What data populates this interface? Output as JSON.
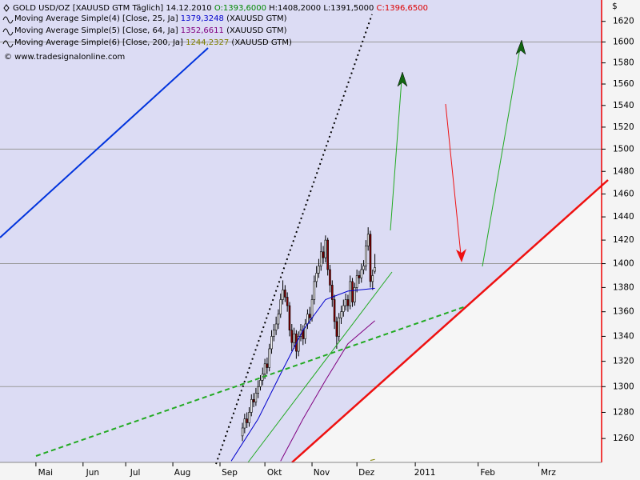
{
  "chart_data": {
    "type": "candlestick",
    "title": "GOLD USD/OZ [XAUUSD GTM  Täglich] 14.12.2010",
    "ohlc_labels": [
      "O:1393,6000",
      "H:1408,2000",
      "L:1391,5000",
      "C:1396,6500"
    ],
    "source": "© www.tradesignalonline.com",
    "y_unit": "$",
    "log_scale": true,
    "grid": true,
    "xlim": [
      0,
      268
    ],
    "ylim": [
      1242,
      1641
    ],
    "xticks": [
      {
        "value": 16,
        "label": "Mai"
      },
      {
        "value": 37,
        "label": "Jun"
      },
      {
        "value": 56,
        "label": "Jul"
      },
      {
        "value": 77,
        "label": "Aug"
      },
      {
        "value": 98,
        "label": "Sep"
      },
      {
        "value": 118,
        "label": "Okt"
      },
      {
        "value": 139,
        "label": "Nov"
      },
      {
        "value": 159,
        "label": "Dez"
      },
      {
        "value": 185,
        "label": "2011"
      },
      {
        "value": 213,
        "label": "Feb"
      },
      {
        "value": 240,
        "label": "Mrz"
      }
    ],
    "yticks": [
      1260,
      1280,
      1300,
      1320,
      1340,
      1360,
      1380,
      1400,
      1420,
      1440,
      1460,
      1480,
      1500,
      1520,
      1540,
      1560,
      1580,
      1600,
      1620
    ],
    "x": [
      108,
      109,
      110,
      111,
      112,
      113,
      114,
      115,
      116,
      117,
      118,
      119,
      120,
      121,
      122,
      123,
      124,
      125,
      126,
      127,
      128,
      129,
      130,
      131,
      132,
      133,
      134,
      135,
      136,
      137,
      138,
      139,
      140,
      141,
      142,
      143,
      144,
      145,
      146,
      147,
      148,
      149,
      150,
      151,
      152,
      153,
      154,
      155,
      156,
      157,
      158,
      159,
      160,
      161,
      162,
      163,
      164,
      165,
      166,
      167
    ],
    "open": [
      1262,
      1268,
      1275,
      1272,
      1280,
      1290,
      1288,
      1295,
      1300,
      1305,
      1310,
      1318,
      1315,
      1330,
      1340,
      1345,
      1350,
      1358,
      1370,
      1378,
      1372,
      1365,
      1345,
      1335,
      1342,
      1328,
      1340,
      1345,
      1338,
      1350,
      1358,
      1355,
      1370,
      1385,
      1392,
      1398,
      1410,
      1405,
      1420,
      1395,
      1382,
      1370,
      1352,
      1340,
      1355,
      1360,
      1365,
      1370,
      1365,
      1385,
      1368,
      1380,
      1390,
      1388,
      1395,
      1398,
      1415,
      1425,
      1385,
      1393.6
    ],
    "high": [
      1272,
      1279,
      1280,
      1284,
      1294,
      1295,
      1299,
      1305,
      1309,
      1315,
      1322,
      1323,
      1334,
      1345,
      1350,
      1356,
      1362,
      1375,
      1386,
      1382,
      1376,
      1368,
      1350,
      1347,
      1345,
      1344,
      1350,
      1349,
      1354,
      1362,
      1364,
      1374,
      1390,
      1398,
      1404,
      1418,
      1415,
      1424,
      1422,
      1399,
      1386,
      1374,
      1356,
      1359,
      1365,
      1370,
      1375,
      1374,
      1390,
      1388,
      1384,
      1395,
      1394,
      1400,
      1403,
      1420,
      1431,
      1428,
      1395,
      1408.2
    ],
    "low": [
      1258,
      1264,
      1268,
      1269,
      1277,
      1284,
      1285,
      1291,
      1297,
      1301,
      1306,
      1310,
      1312,
      1326,
      1336,
      1341,
      1346,
      1355,
      1366,
      1368,
      1360,
      1340,
      1328,
      1330,
      1322,
      1324,
      1336,
      1333,
      1334,
      1346,
      1350,
      1352,
      1366,
      1380,
      1388,
      1394,
      1400,
      1401,
      1390,
      1376,
      1364,
      1346,
      1330,
      1336,
      1350,
      1356,
      1361,
      1360,
      1362,
      1364,
      1365,
      1376,
      1383,
      1384,
      1391,
      1394,
      1411,
      1380,
      1378,
      1391.5
    ],
    "close": [
      1268,
      1275,
      1272,
      1280,
      1290,
      1288,
      1295,
      1300,
      1305,
      1310,
      1318,
      1315,
      1330,
      1340,
      1345,
      1350,
      1358,
      1370,
      1378,
      1372,
      1365,
      1345,
      1335,
      1342,
      1328,
      1340,
      1345,
      1338,
      1350,
      1358,
      1355,
      1370,
      1385,
      1392,
      1398,
      1410,
      1405,
      1420,
      1395,
      1382,
      1370,
      1352,
      1340,
      1355,
      1360,
      1365,
      1370,
      1365,
      1385,
      1368,
      1380,
      1390,
      1388,
      1395,
      1398,
      1415,
      1425,
      1385,
      1390,
      1396.65
    ],
    "series": [
      {
        "name": "Moving Average Simple(4) [Close, 25, Ja]",
        "value_label": "1379,3248",
        "instrument": "(XAUUSD GTM)",
        "color": "#0000cc",
        "x": [
          103,
          115,
          125,
          135,
          145,
          155,
          167
        ],
        "values": [
          1243,
          1275,
          1310,
          1345,
          1370,
          1377,
          1379.3248
        ]
      },
      {
        "name": "Moving Average Simple(5) [Close, 64, Ja]",
        "value_label": "1352,6611",
        "instrument": "(XAUUSD GTM)",
        "color": "#800080",
        "x": [
          125,
          135,
          145,
          155,
          167
        ],
        "values": [
          1243,
          1275,
          1305,
          1334,
          1352.6611
        ]
      },
      {
        "name": "Moving Average Simple(6) [Close, 200, Ja]",
        "value_label": "1244,2327",
        "instrument": "(XAUUSD GTM)",
        "color": "#808000",
        "x": [
          165,
          167
        ],
        "values": [
          1243.5,
          1244.2327
        ]
      }
    ]
  }
}
